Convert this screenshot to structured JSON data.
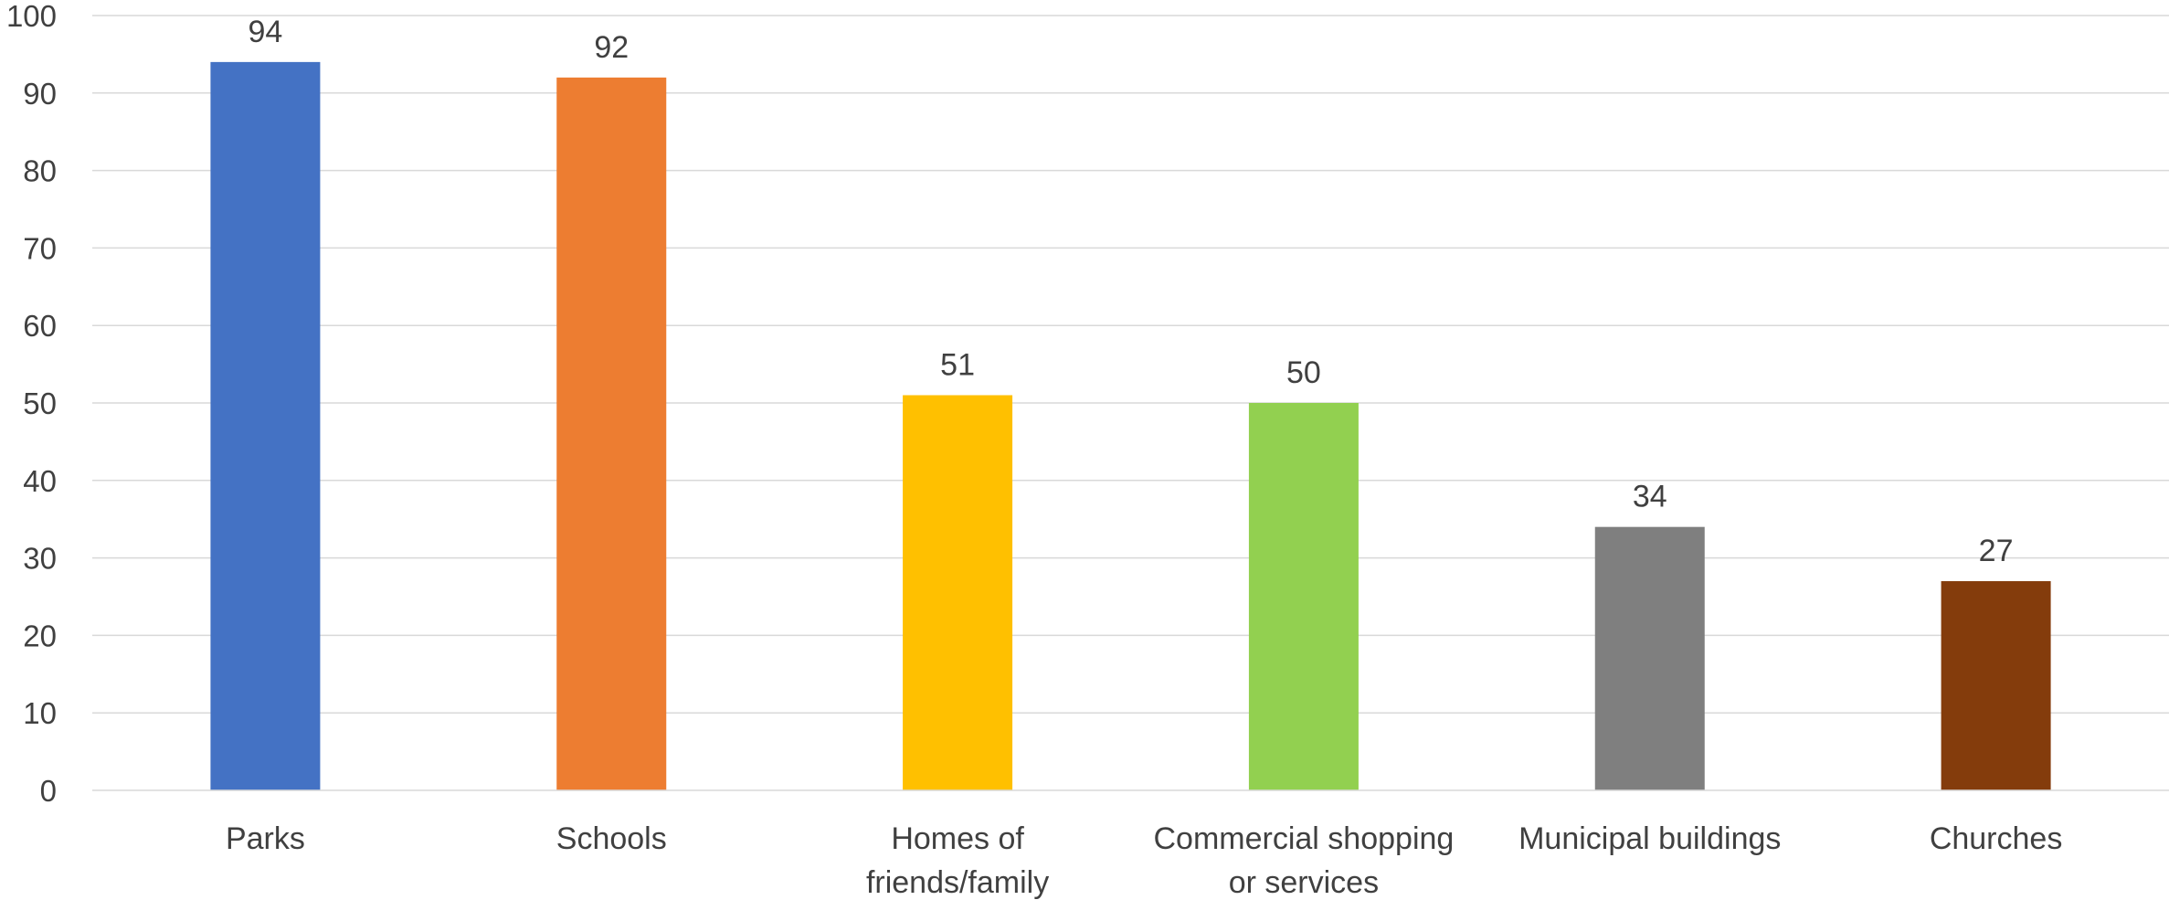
{
  "chart_data": {
    "type": "bar",
    "title": "",
    "xlabel": "",
    "ylabel": "",
    "categories": [
      [
        "Parks"
      ],
      [
        "Schools"
      ],
      [
        "Homes of",
        "friends/family"
      ],
      [
        "Commercial shopping",
        "or services"
      ],
      [
        "Municipal buildings"
      ],
      [
        "Churches"
      ]
    ],
    "values": [
      94,
      92,
      51,
      50,
      34,
      27
    ],
    "colors": [
      "#4472c4",
      "#ed7d31",
      "#ffc000",
      "#92d050",
      "#7f7f7f",
      "#843c0c"
    ],
    "ylim": [
      0,
      100
    ],
    "yticks": [
      0,
      10,
      20,
      30,
      40,
      50,
      60,
      70,
      80,
      90,
      100
    ],
    "grid": true,
    "legend": "none",
    "data_labels": true
  }
}
